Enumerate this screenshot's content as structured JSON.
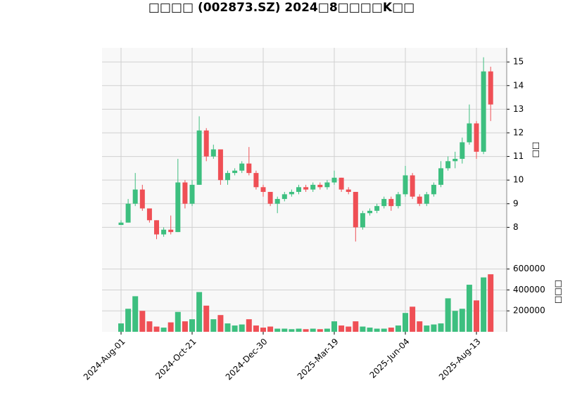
{
  "chart_data": {
    "type": "candlestick",
    "title": "□□□□ (002873.SZ) 2024□8□□□□K□□",
    "ylabel": "□□",
    "volume_ylabel": "□□□",
    "up_color": "#3dbf7f",
    "down_color": "#ef4f55",
    "grid": true,
    "categories": [
      "2024-Aug-01",
      null,
      null,
      null,
      null,
      null,
      null,
      null,
      null,
      null,
      "2024-Oct-21",
      null,
      null,
      null,
      null,
      null,
      null,
      null,
      null,
      null,
      "2024-Dec-30",
      null,
      null,
      null,
      null,
      null,
      null,
      null,
      null,
      null,
      "2025-Mar-19",
      null,
      null,
      null,
      null,
      null,
      null,
      null,
      null,
      null,
      "2025-Jun-04",
      null,
      null,
      null,
      null,
      null,
      null,
      null,
      null,
      null,
      "2025-Aug-13",
      null,
      null
    ],
    "open": [
      8.1,
      8.2,
      9.0,
      9.6,
      8.8,
      8.3,
      7.7,
      7.9,
      7.8,
      9.9,
      9.0,
      9.8,
      12.1,
      11.0,
      11.3,
      10.0,
      10.3,
      10.4,
      10.7,
      10.3,
      9.7,
      9.5,
      9.0,
      9.2,
      9.4,
      9.5,
      9.7,
      9.6,
      9.8,
      9.7,
      9.9,
      10.1,
      9.6,
      9.5,
      8.0,
      8.6,
      8.7,
      8.9,
      9.2,
      8.9,
      9.4,
      10.2,
      9.3,
      9.0,
      9.4,
      9.8,
      10.5,
      10.8,
      10.9,
      11.6,
      12.4,
      11.2,
      14.6
    ],
    "high": [
      8.3,
      9.2,
      10.3,
      9.8,
      8.8,
      8.3,
      8.0,
      8.5,
      10.9,
      10.0,
      10.0,
      12.7,
      12.2,
      11.5,
      11.3,
      10.4,
      10.5,
      10.8,
      11.4,
      10.4,
      9.8,
      9.5,
      9.3,
      9.5,
      9.6,
      9.8,
      9.8,
      9.9,
      9.9,
      10.0,
      10.4,
      10.1,
      9.7,
      9.5,
      8.7,
      8.8,
      9.0,
      9.3,
      9.3,
      9.5,
      10.6,
      10.3,
      9.4,
      9.5,
      9.9,
      10.8,
      11.0,
      11.2,
      11.8,
      13.2,
      12.5,
      15.2,
      14.8
    ],
    "low": [
      8.1,
      8.2,
      8.9,
      8.7,
      8.2,
      7.5,
      7.6,
      7.7,
      7.8,
      8.8,
      8.9,
      9.8,
      10.8,
      10.9,
      9.8,
      9.8,
      10.2,
      10.3,
      10.2,
      9.6,
      9.3,
      8.9,
      8.6,
      9.1,
      9.3,
      9.4,
      9.5,
      9.5,
      9.6,
      9.6,
      9.8,
      9.5,
      9.4,
      7.4,
      7.9,
      8.5,
      8.6,
      8.8,
      8.7,
      8.8,
      9.3,
      9.2,
      8.9,
      8.9,
      9.3,
      9.7,
      10.4,
      10.5,
      10.7,
      11.5,
      10.9,
      11.1,
      12.5
    ],
    "close": [
      8.2,
      9.0,
      9.6,
      8.8,
      8.3,
      7.7,
      7.9,
      7.8,
      9.9,
      9.0,
      9.8,
      12.1,
      11.0,
      11.3,
      10.0,
      10.3,
      10.4,
      10.7,
      10.3,
      9.7,
      9.5,
      9.0,
      9.2,
      9.4,
      9.5,
      9.7,
      9.6,
      9.8,
      9.7,
      9.9,
      10.1,
      9.6,
      9.5,
      8.0,
      8.6,
      8.7,
      8.9,
      9.2,
      8.9,
      9.4,
      10.2,
      9.3,
      9.0,
      9.4,
      9.8,
      10.5,
      10.8,
      10.9,
      11.6,
      12.4,
      11.2,
      14.6,
      13.2
    ],
    "volume": [
      80000,
      220000,
      340000,
      200000,
      100000,
      50000,
      40000,
      90000,
      190000,
      100000,
      120000,
      380000,
      250000,
      120000,
      160000,
      80000,
      60000,
      70000,
      120000,
      60000,
      40000,
      50000,
      30000,
      30000,
      25000,
      30000,
      25000,
      30000,
      25000,
      30000,
      100000,
      60000,
      50000,
      100000,
      50000,
      40000,
      30000,
      30000,
      40000,
      60000,
      180000,
      240000,
      100000,
      60000,
      70000,
      80000,
      320000,
      200000,
      220000,
      450000,
      300000,
      520000,
      550000
    ],
    "ylim": [
      7.0,
      15.6
    ],
    "yticks": [
      8,
      9,
      10,
      11,
      12,
      13,
      14,
      15
    ],
    "volume_ylim": [
      0,
      773000
    ],
    "volume_yticks": [
      200000,
      400000,
      600000
    ]
  }
}
